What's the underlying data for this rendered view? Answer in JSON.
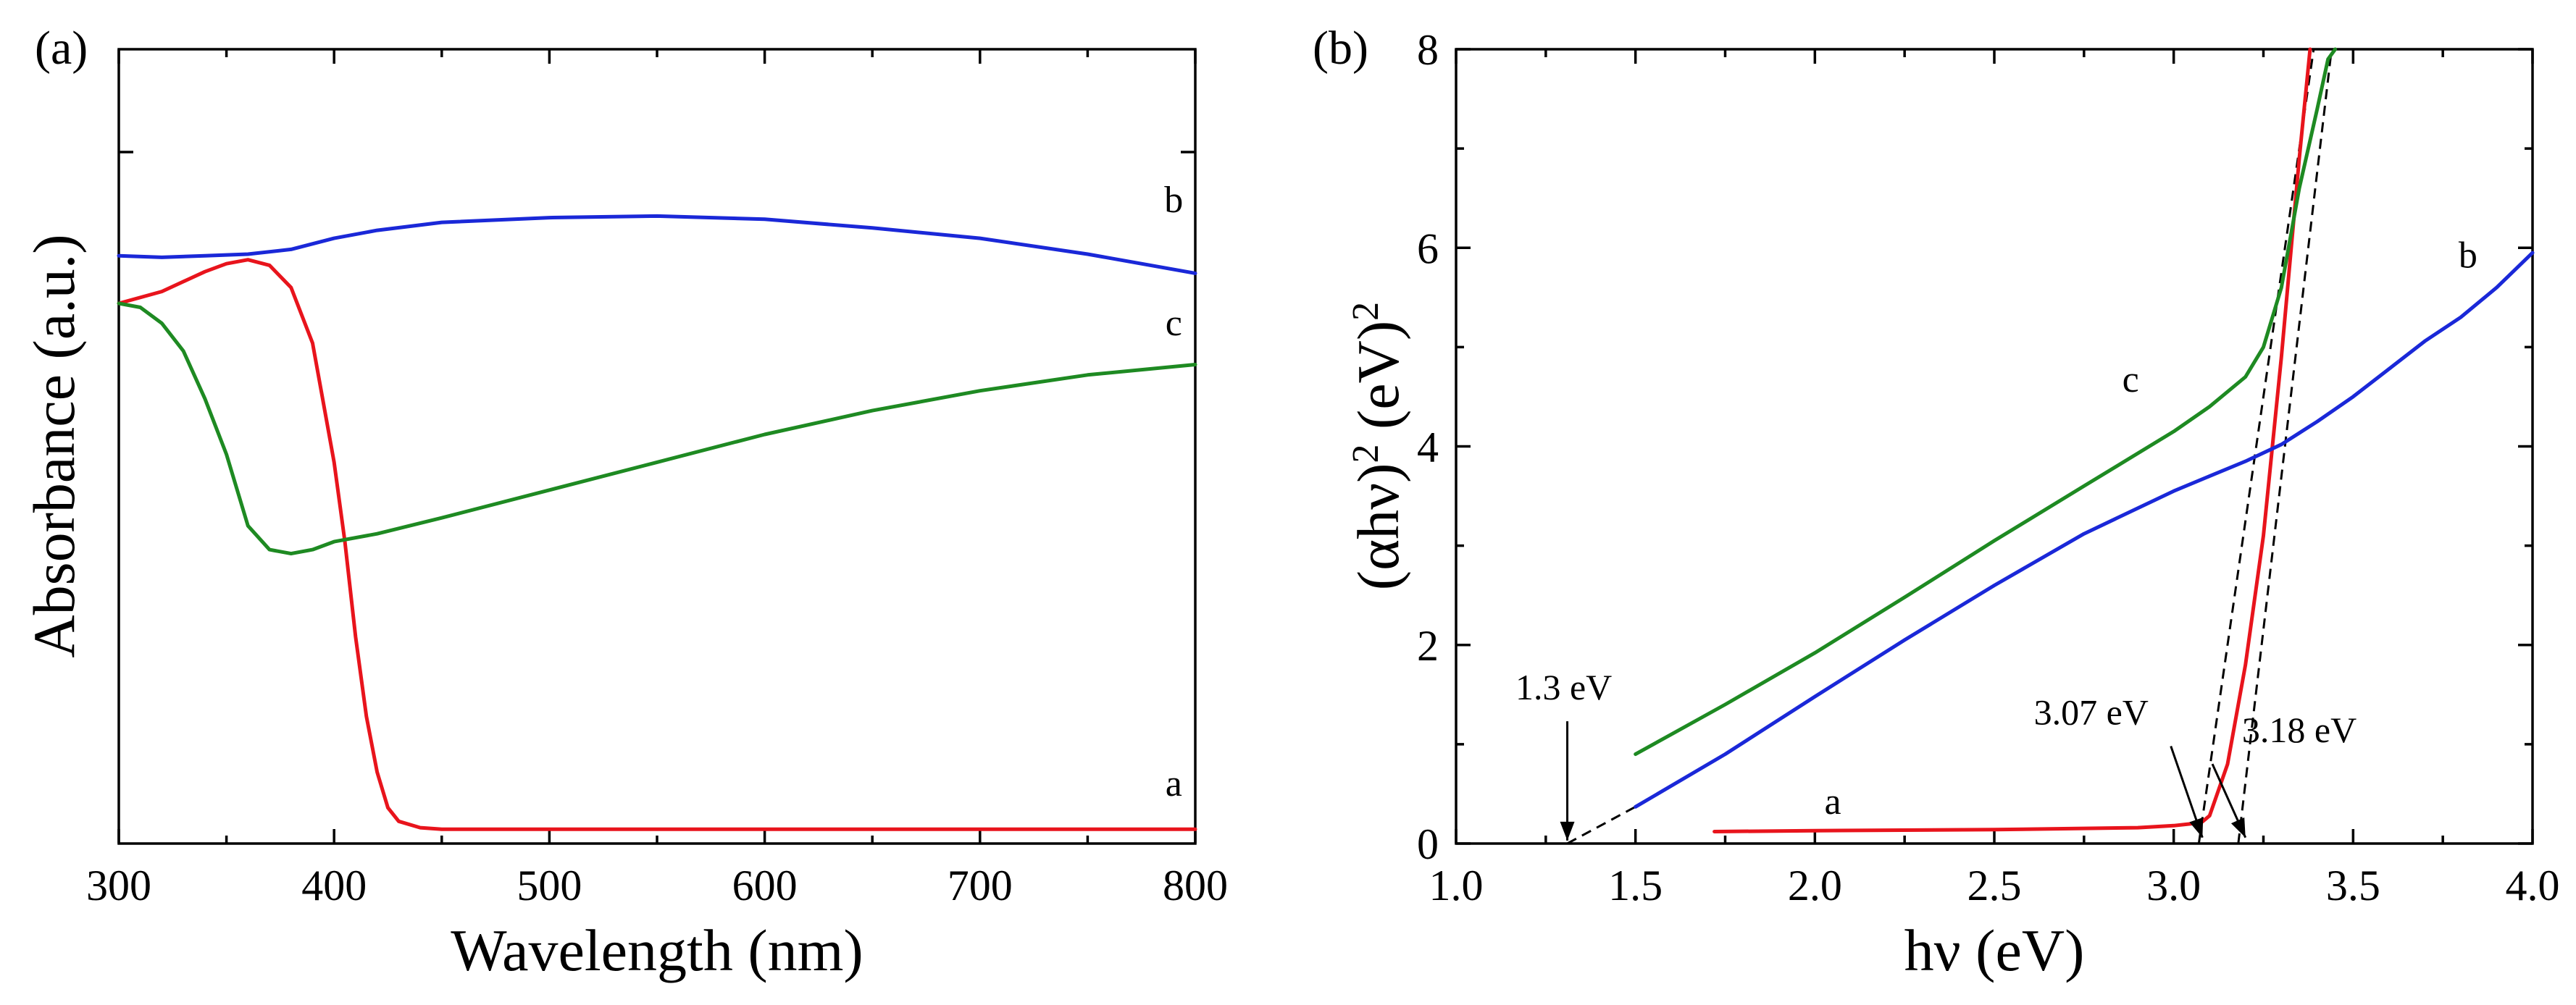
{
  "chart_data": [
    {
      "type": "line",
      "panel_label": "(a)",
      "xlabel": "Wavelength (nm)",
      "ylabel": "Absorbance (a.u.)",
      "xlim": [
        300,
        800
      ],
      "ylim": [
        0,
        1
      ],
      "x_ticks": [
        300,
        400,
        500,
        600,
        700,
        800
      ],
      "x_tick_labels": [
        "300",
        "400",
        "500",
        "600",
        "700",
        "800"
      ],
      "y_ticks_shown": false,
      "series": [
        {
          "name": "a",
          "color": "#e8141c",
          "x": [
            300,
            320,
            340,
            350,
            360,
            370,
            380,
            390,
            400,
            405,
            410,
            415,
            420,
            425,
            430,
            440,
            450,
            500,
            600,
            700,
            800
          ],
          "y": [
            0.68,
            0.695,
            0.72,
            0.73,
            0.735,
            0.728,
            0.7,
            0.63,
            0.48,
            0.38,
            0.26,
            0.16,
            0.09,
            0.045,
            0.028,
            0.02,
            0.018,
            0.018,
            0.018,
            0.018,
            0.018
          ]
        },
        {
          "name": "b",
          "color": "#1a28d8",
          "x": [
            300,
            320,
            340,
            360,
            380,
            400,
            420,
            450,
            500,
            550,
            600,
            650,
            700,
            750,
            800
          ],
          "y": [
            0.74,
            0.738,
            0.74,
            0.742,
            0.748,
            0.762,
            0.772,
            0.782,
            0.788,
            0.79,
            0.786,
            0.775,
            0.762,
            0.742,
            0.718
          ]
        },
        {
          "name": "c",
          "color": "#1e8a22",
          "x": [
            300,
            310,
            320,
            330,
            340,
            350,
            360,
            370,
            380,
            390,
            400,
            420,
            450,
            500,
            550,
            600,
            650,
            700,
            750,
            800
          ],
          "y": [
            0.68,
            0.675,
            0.655,
            0.62,
            0.56,
            0.49,
            0.4,
            0.37,
            0.365,
            0.37,
            0.38,
            0.39,
            0.41,
            0.445,
            0.48,
            0.515,
            0.545,
            0.57,
            0.59,
            0.603
          ]
        }
      ],
      "curve_labels": [
        {
          "text": "b",
          "x": 790,
          "y": 0.795
        },
        {
          "text": "c",
          "x": 790,
          "y": 0.64
        },
        {
          "text": "a",
          "x": 790,
          "y": 0.06
        }
      ]
    },
    {
      "type": "line",
      "panel_label": "(b)",
      "xlabel": "hν (eV)",
      "ylabel": "(αhν)² (eV)²",
      "ylabel_parts": {
        "base": "(αhν)",
        "sup1": "2",
        "mid": " (eV)",
        "sup2": "2"
      },
      "xlim": [
        1.0,
        4.0
      ],
      "ylim": [
        0,
        8
      ],
      "x_ticks": [
        1.0,
        1.5,
        2.0,
        2.5,
        3.0,
        3.5,
        4.0
      ],
      "x_tick_labels": [
        "1.0",
        "1.5",
        "2.0",
        "2.5",
        "3.0",
        "3.5",
        "4.0"
      ],
      "y_ticks": [
        0,
        2,
        4,
        6,
        8
      ],
      "y_tick_labels": [
        "0",
        "2",
        "4",
        "6",
        "8"
      ],
      "series": [
        {
          "name": "a",
          "color": "#e8141c",
          "x": [
            1.72,
            2.0,
            2.5,
            2.9,
            3.0,
            3.05,
            3.08,
            3.1,
            3.15,
            3.2,
            3.25,
            3.3,
            3.35,
            3.38
          ],
          "y": [
            0.12,
            0.13,
            0.14,
            0.16,
            0.18,
            0.2,
            0.22,
            0.28,
            0.8,
            1.8,
            3.1,
            4.9,
            6.9,
            8.0
          ]
        },
        {
          "name": "b",
          "color": "#1a28d8",
          "x": [
            1.5,
            1.75,
            2.0,
            2.25,
            2.5,
            2.75,
            3.0,
            3.1,
            3.2,
            3.3,
            3.4,
            3.5,
            3.6,
            3.7,
            3.8,
            3.9,
            4.0
          ],
          "y": [
            0.37,
            0.9,
            1.48,
            2.05,
            2.6,
            3.12,
            3.55,
            3.7,
            3.85,
            4.02,
            4.25,
            4.5,
            4.78,
            5.06,
            5.3,
            5.6,
            5.95
          ]
        },
        {
          "name": "c",
          "color": "#1e8a22",
          "x": [
            1.5,
            1.75,
            2.0,
            2.25,
            2.5,
            2.75,
            3.0,
            3.1,
            3.2,
            3.25,
            3.3,
            3.35,
            3.4,
            3.43,
            3.45
          ],
          "y": [
            0.9,
            1.4,
            1.92,
            2.48,
            3.05,
            3.6,
            4.15,
            4.4,
            4.7,
            5.0,
            5.6,
            6.6,
            7.4,
            7.9,
            8.0
          ]
        }
      ],
      "fit_lines": [
        {
          "from": [
            1.31,
            0.0
          ],
          "to": [
            1.5,
            0.37
          ]
        },
        {
          "from": [
            3.07,
            0.0
          ],
          "to": [
            3.39,
            8.0
          ]
        },
        {
          "from": [
            3.18,
            0.0
          ],
          "to": [
            3.44,
            8.0
          ]
        }
      ],
      "annotations": [
        {
          "text": "1.3 eV",
          "x": 1.3,
          "y": 1.45,
          "arrow_to": [
            1.31,
            0.03
          ]
        },
        {
          "text": "3.07 eV",
          "x": 2.77,
          "y": 1.2,
          "arrow_to": [
            3.08,
            0.06
          ]
        },
        {
          "text": "3.18 eV",
          "x": 3.35,
          "y": 1.02,
          "arrow_to": [
            3.2,
            0.06
          ]
        }
      ],
      "curve_labels": [
        {
          "text": "b",
          "x": 3.82,
          "y": 5.8
        },
        {
          "text": "c",
          "x": 2.88,
          "y": 4.55
        },
        {
          "text": "a",
          "x": 2.05,
          "y": 0.3
        }
      ]
    }
  ]
}
